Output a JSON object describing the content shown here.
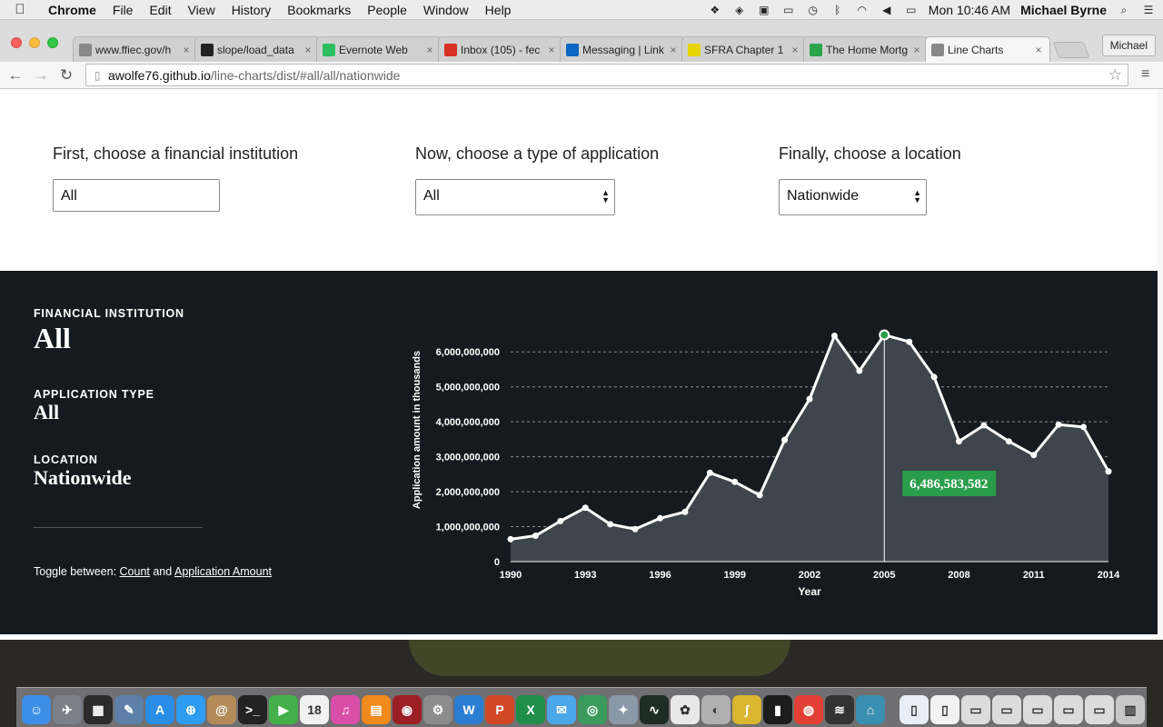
{
  "menubar": {
    "app": "Chrome",
    "items": [
      "File",
      "Edit",
      "View",
      "History",
      "Bookmarks",
      "People",
      "Window",
      "Help"
    ],
    "clock": "Mon 10:46 AM",
    "user": "Michael Byrne"
  },
  "browser": {
    "tabs": [
      {
        "title": "www.ffiec.gov/h",
        "icon": "page-icon",
        "color": "#888888"
      },
      {
        "title": "slope/load_data",
        "icon": "github-icon",
        "color": "#222222"
      },
      {
        "title": "Evernote Web",
        "icon": "evernote-icon",
        "color": "#2dbe60"
      },
      {
        "title": "Inbox (105) - fec",
        "icon": "gmail-icon",
        "color": "#d93025"
      },
      {
        "title": "Messaging | Link",
        "icon": "linkedin-icon",
        "color": "#0a66c2"
      },
      {
        "title": "SFRA Chapter 1",
        "icon": "srs-icon",
        "color": "#e8d400"
      },
      {
        "title": "The Home Mortg",
        "icon": "c-icon",
        "color": "#2aa34a"
      },
      {
        "title": "Line Charts",
        "icon": "page-icon",
        "color": "#888888",
        "active": true
      }
    ],
    "profile": "Michael",
    "url_host": "awolfe76.github.io",
    "url_path": "/line-charts/dist/#all/all/nationwide"
  },
  "selectors": {
    "institution": {
      "label": "First, choose a financial institution",
      "value": "All"
    },
    "app_type": {
      "label": "Now, choose a type of application",
      "value": "All"
    },
    "location": {
      "label": "Finally, choose a location",
      "value": "Nationwide"
    }
  },
  "info": {
    "institution_caption": "FINANCIAL INSTITUTION",
    "institution_value": "All",
    "app_type_caption": "APPLICATION TYPE",
    "app_type_value": "All",
    "location_caption": "LOCATION",
    "location_value": "Nationwide",
    "toggle_prefix": "Toggle between: ",
    "toggle_count": "Count",
    "toggle_and": " and ",
    "toggle_amount": "Application Amount"
  },
  "chart_data": {
    "type": "area",
    "xlabel": "Year",
    "ylabel": "Application amount in thousands",
    "x": [
      1990,
      1991,
      1992,
      1993,
      1994,
      1995,
      1996,
      1997,
      1998,
      1999,
      2000,
      2001,
      2002,
      2003,
      2004,
      2005,
      2006,
      2007,
      2008,
      2009,
      2010,
      2011,
      2012,
      2013,
      2014
    ],
    "values": [
      640000000,
      740000000,
      1160000000,
      1540000000,
      1070000000,
      930000000,
      1240000000,
      1420000000,
      2540000000,
      2280000000,
      1900000000,
      3480000000,
      4650000000,
      6460000000,
      5460000000,
      6486583582,
      6290000000,
      5280000000,
      3440000000,
      3900000000,
      3440000000,
      3050000000,
      3920000000,
      3850000000,
      2580000000
    ],
    "xticks": [
      "1990",
      "1993",
      "1996",
      "1999",
      "2002",
      "2005",
      "2008",
      "2011",
      "2014"
    ],
    "yticks": [
      "0",
      "1,000,000,000",
      "2,000,000,000",
      "3,000,000,000",
      "4,000,000,000",
      "5,000,000,000",
      "6,000,000,000"
    ],
    "ylim": [
      0,
      6500000000
    ],
    "highlight": {
      "x": 2005,
      "label": "6,486,583,582"
    },
    "grid": true,
    "colors": {
      "line": "#ffffff",
      "area": "#3f454c",
      "highlight": "#2a9d4a",
      "tooltip_bg": "#2a9d4a"
    }
  },
  "dock": {
    "icons": [
      {
        "name": "finder-icon",
        "glyph": "☺",
        "color": "#3d8ee6"
      },
      {
        "name": "launchpad-icon",
        "glyph": "✈",
        "color": "#7a7f88"
      },
      {
        "name": "mission-control-icon",
        "glyph": "▦",
        "color": "#2b2b2b"
      },
      {
        "name": "preview-icon",
        "glyph": "✎",
        "color": "#5d7fa8"
      },
      {
        "name": "app-store-icon",
        "glyph": "A",
        "color": "#2a8de6",
        "badge": "1"
      },
      {
        "name": "safari-icon",
        "glyph": "⊕",
        "color": "#2e9cf0"
      },
      {
        "name": "contacts-icon",
        "glyph": "@",
        "color": "#b28b58"
      },
      {
        "name": "terminal-icon",
        "glyph": ">_",
        "color": "#222222"
      },
      {
        "name": "facetime-icon",
        "glyph": "▶",
        "color": "#43b049"
      },
      {
        "name": "calendar-icon",
        "glyph": "18",
        "color": "#f1f1f1",
        "badge": "3"
      },
      {
        "name": "itunes-icon",
        "glyph": "♫",
        "color": "#d94fa8"
      },
      {
        "name": "ibooks-icon",
        "glyph": "▤",
        "color": "#f08a1c"
      },
      {
        "name": "photo-booth-icon",
        "glyph": "◉",
        "color": "#9b1f24"
      },
      {
        "name": "system-preferences-icon",
        "glyph": "⚙",
        "color": "#8c8c8c"
      },
      {
        "name": "word-icon",
        "glyph": "W",
        "color": "#2b7cd3"
      },
      {
        "name": "powerpoint-icon",
        "glyph": "P",
        "color": "#d24726"
      },
      {
        "name": "excel-icon",
        "glyph": "X",
        "color": "#1f8f4a"
      },
      {
        "name": "messages-icon",
        "glyph": "✉",
        "color": "#4aa7e8"
      },
      {
        "name": "network-icon",
        "glyph": "◎",
        "color": "#3a9b5c"
      },
      {
        "name": "satellite-icon",
        "glyph": "✦",
        "color": "#8a98a8"
      },
      {
        "name": "activity-monitor-icon",
        "glyph": "∿",
        "color": "#1d2c24"
      },
      {
        "name": "photos-icon",
        "glyph": "✿",
        "color": "#e8e8e8"
      },
      {
        "name": "itunes-u-icon",
        "glyph": "◐",
        "color": "#b0b0b0"
      },
      {
        "name": "grapher-icon",
        "glyph": "∫",
        "color": "#d9b530"
      },
      {
        "name": "console-icon",
        "glyph": "▮",
        "color": "#1c1c1c"
      },
      {
        "name": "chrome-icon",
        "glyph": "◍",
        "color": "#e24034"
      },
      {
        "name": "vpn-icon",
        "glyph": "≋",
        "color": "#333333"
      },
      {
        "name": "home-icon",
        "glyph": "⌂",
        "color": "#3a8fb0"
      }
    ],
    "docs": [
      {
        "name": "document-icon",
        "glyph": "▯",
        "color": "#e8eef6"
      },
      {
        "name": "document-icon",
        "glyph": "▯",
        "color": "#f2f2f2"
      },
      {
        "name": "window-thumbnail-icon",
        "glyph": "▭",
        "color": "#dcdcdc"
      },
      {
        "name": "window-thumbnail-icon",
        "glyph": "▭",
        "color": "#dcdcdc"
      },
      {
        "name": "window-thumbnail-icon",
        "glyph": "▭",
        "color": "#dcdcdc"
      },
      {
        "name": "window-thumbnail-icon",
        "glyph": "▭",
        "color": "#dcdcdc"
      },
      {
        "name": "window-thumbnail-icon",
        "glyph": "▭",
        "color": "#dcdcdc"
      },
      {
        "name": "trash-icon",
        "glyph": "▥",
        "color": "#c8c8c8"
      }
    ]
  }
}
